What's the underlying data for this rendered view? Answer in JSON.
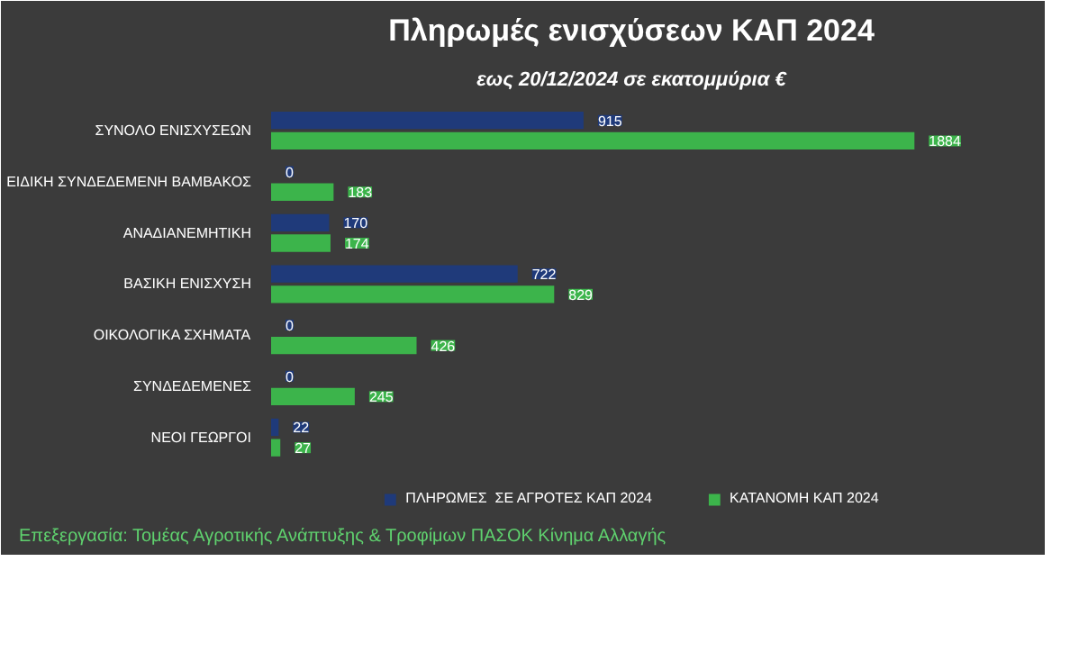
{
  "chart_data": {
    "type": "bar",
    "orientation": "horizontal",
    "title": "Πληρωμές ενισχύσεων ΚΑΠ 2024",
    "subtitle": "εως 20/12/2024 σε εκατομμύρια €",
    "categories": [
      "ΣΥΝΟΛΟ ΕΝΙΣΧΥΣΕΩΝ",
      "ΕΙΔΙΚΗ ΣΥΝΔΕΔΕΜΕΝΗ ΒΑΜΒΑΚΟΣ",
      "ΑΝΑΔΙΑΝΕΜΗΤΙΚΗ",
      "ΒΑΣΙΚΗ ΕΝΙΣΧΥΣΗ",
      "ΟΙΚΟΛΟΓΙΚΑ ΣΧΗΜΑΤΑ",
      "ΣΥΝΔΕΔΕΜΕΝΕΣ",
      "ΝΕΟΙ ΓΕΩΡΓΟΙ"
    ],
    "series": [
      {
        "name": "ΠΛΗΡΩΜΕΣ  ΣΕ ΑΓΡΟΤΕΣ ΚΑΠ 2024",
        "color": "#1f3a7a",
        "values": [
          915,
          0,
          170,
          722,
          0,
          0,
          22
        ]
      },
      {
        "name": "ΚΑΤΑΝΟΜΗ ΚΑΠ 2024",
        "color": "#3cb44b",
        "values": [
          1884,
          183,
          174,
          829,
          426,
          245,
          27
        ]
      }
    ],
    "data_labels": true,
    "legend": "bottom",
    "grid": false,
    "annotations": [
      "Επεξεργασία: Τομέας Αγροτικής Ανάπτυξης & Τροφίμων ΠΑΣΟΚ Κίνημα Αλλαγής"
    ]
  }
}
